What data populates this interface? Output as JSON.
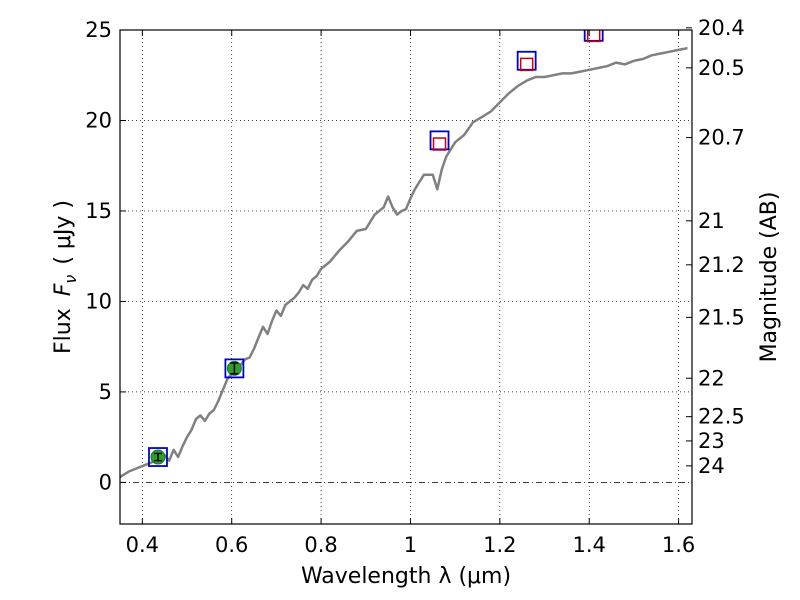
{
  "chart_data": {
    "type": "line",
    "xlabel": "Wavelength  λ (μm)",
    "ylabel": "Flux  F_ν  ( μJy )",
    "ylabel_parts": {
      "prefix": "Flux",
      "symbol": "F",
      "subscript": "ν",
      "unit": "( μJy )"
    },
    "y2label": "Magnitude (AB)",
    "xlim": [
      0.35,
      1.63
    ],
    "ylim": [
      -2.3,
      25
    ],
    "grid": true,
    "x_ticks": [
      0.4,
      0.6,
      0.8,
      1.0,
      1.2,
      1.4,
      1.6
    ],
    "x_tick_labels": [
      "0.4",
      "0.6",
      "0.8",
      "1",
      "1.2",
      "1.4",
      "1.6"
    ],
    "y_ticks": [
      0,
      5,
      10,
      15,
      20,
      25
    ],
    "y_tick_labels": [
      "0",
      "5",
      "10",
      "15",
      "20",
      "25"
    ],
    "y2_ticks": [
      {
        "label": "20.4",
        "mag": 20.4
      },
      {
        "label": "20.5",
        "mag": 20.5
      },
      {
        "label": "20.7",
        "mag": 20.7
      },
      {
        "label": "21",
        "mag": 21.0
      },
      {
        "label": "21.2",
        "mag": 21.2
      },
      {
        "label": "21.5",
        "mag": 21.5
      },
      {
        "label": "22",
        "mag": 22.0
      },
      {
        "label": "22.5",
        "mag": 22.5
      },
      {
        "label": "23",
        "mag": 23.0
      },
      {
        "label": "24",
        "mag": 24.0
      }
    ],
    "series": [
      {
        "kind": "spectrum",
        "color": "#808080",
        "x": [
          0.35,
          0.37,
          0.39,
          0.41,
          0.42,
          0.43,
          0.44,
          0.45,
          0.46,
          0.47,
          0.48,
          0.49,
          0.5,
          0.51,
          0.52,
          0.53,
          0.54,
          0.55,
          0.56,
          0.57,
          0.58,
          0.59,
          0.6,
          0.61,
          0.62,
          0.63,
          0.64,
          0.65,
          0.66,
          0.67,
          0.68,
          0.69,
          0.7,
          0.71,
          0.72,
          0.73,
          0.74,
          0.75,
          0.76,
          0.77,
          0.78,
          0.79,
          0.8,
          0.82,
          0.84,
          0.86,
          0.88,
          0.9,
          0.92,
          0.94,
          0.95,
          0.96,
          0.97,
          0.98,
          0.99,
          1.0,
          1.01,
          1.02,
          1.03,
          1.04,
          1.05,
          1.06,
          1.07,
          1.08,
          1.1,
          1.12,
          1.14,
          1.16,
          1.18,
          1.2,
          1.22,
          1.24,
          1.26,
          1.28,
          1.3,
          1.32,
          1.34,
          1.36,
          1.38,
          1.4,
          1.42,
          1.44,
          1.46,
          1.48,
          1.5,
          1.52,
          1.54,
          1.56,
          1.58,
          1.6,
          1.62
        ],
        "y": [
          0.3,
          0.6,
          0.8,
          1.0,
          1.1,
          1.2,
          1.3,
          1.5,
          1.2,
          1.8,
          1.4,
          2.0,
          2.5,
          2.9,
          3.5,
          3.7,
          3.4,
          3.8,
          4.0,
          4.5,
          5.1,
          5.7,
          6.0,
          6.3,
          6.5,
          6.8,
          6.9,
          7.4,
          8.0,
          8.6,
          8.2,
          8.9,
          9.5,
          9.2,
          9.8,
          10.0,
          10.2,
          10.5,
          10.9,
          10.7,
          11.2,
          11.4,
          11.8,
          12.2,
          12.8,
          13.3,
          13.9,
          14.0,
          14.8,
          15.2,
          15.8,
          15.2,
          14.8,
          15.0,
          15.1,
          15.7,
          16.2,
          16.6,
          17.0,
          17.0,
          17.0,
          16.2,
          17.3,
          18.0,
          18.8,
          19.2,
          19.9,
          20.2,
          20.5,
          21.0,
          21.5,
          21.9,
          22.2,
          22.4,
          22.4,
          22.5,
          22.6,
          22.6,
          22.7,
          22.8,
          22.9,
          23.0,
          23.2,
          23.1,
          23.3,
          23.4,
          23.6,
          23.7,
          23.8,
          23.9,
          24.0
        ]
      },
      {
        "kind": "observed-photometry",
        "marker_color": "#2ca02c",
        "points": [
          {
            "x": 0.435,
            "y": 1.4,
            "yerr": 0.2
          },
          {
            "x": 0.606,
            "y": 6.3,
            "yerr": 0.3
          }
        ]
      },
      {
        "kind": "model-photometry",
        "marker_color": "#0000cc",
        "points": [
          {
            "x": 0.435,
            "y": 1.4
          },
          {
            "x": 0.606,
            "y": 6.3
          },
          {
            "x": 1.065,
            "y": 18.9
          },
          {
            "x": 1.26,
            "y": 23.3
          },
          {
            "x": 1.41,
            "y": 24.9
          }
        ]
      },
      {
        "kind": "upper-limits",
        "marker_color": "#cc0000",
        "points": [
          {
            "x": 1.065,
            "y": 18.7
          },
          {
            "x": 1.26,
            "y": 23.1
          },
          {
            "x": 1.41,
            "y": 24.7
          }
        ]
      }
    ]
  }
}
